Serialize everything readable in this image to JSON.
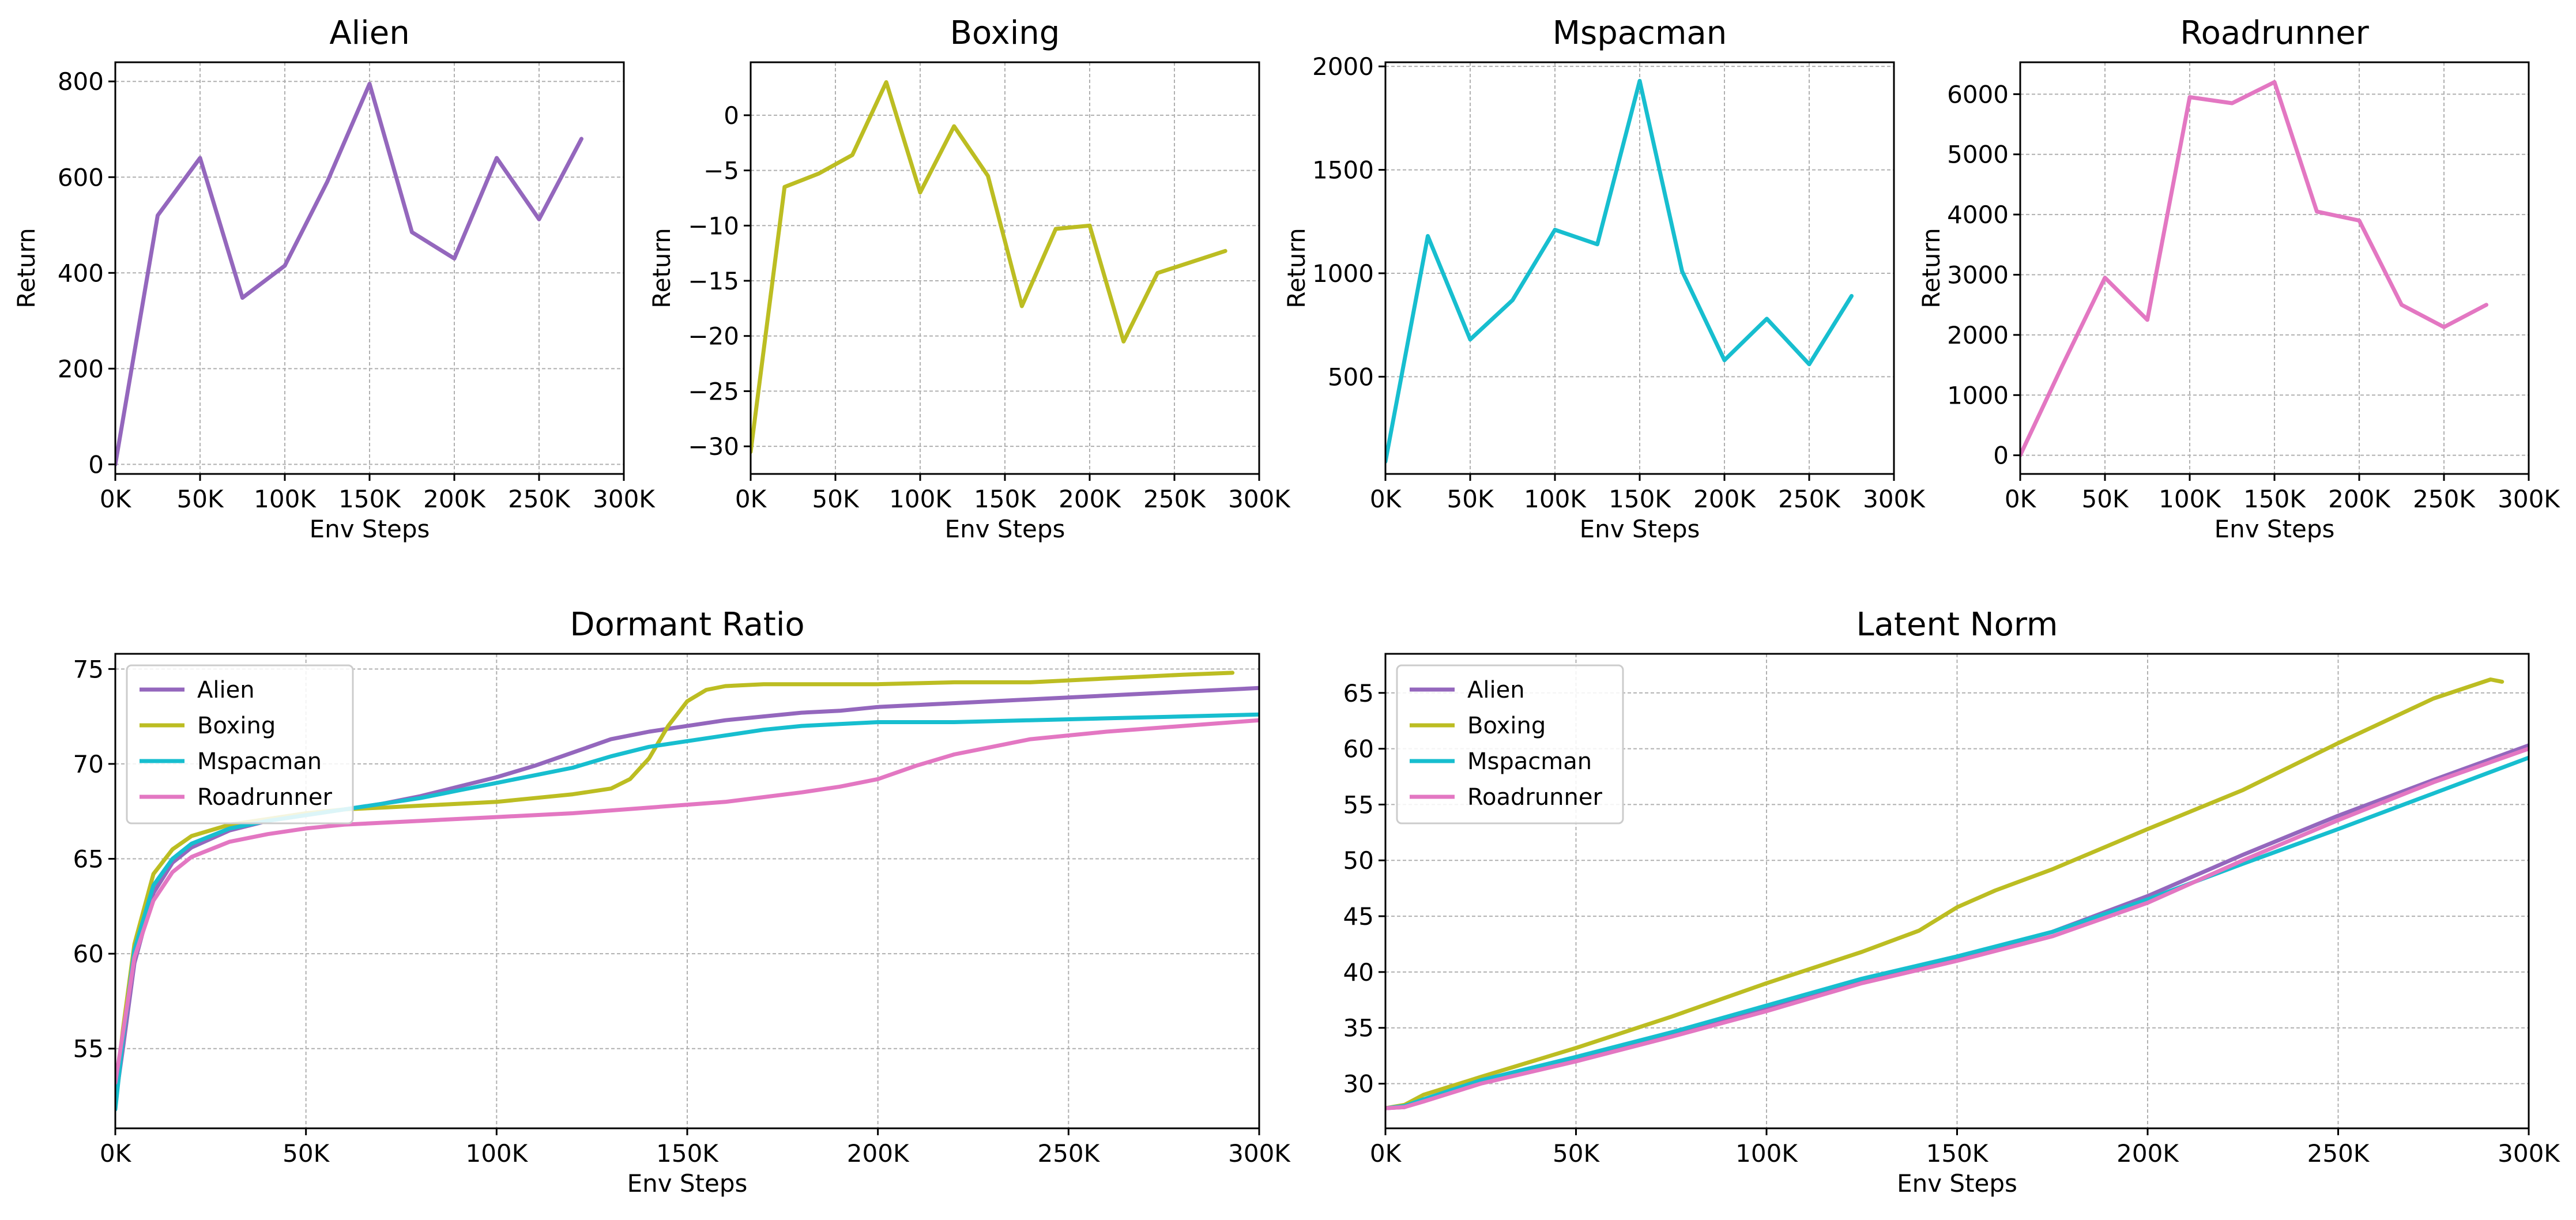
{
  "chart_data": [
    {
      "type": "line",
      "title": "Alien",
      "xlabel": "Env Steps",
      "ylabel": "Return",
      "xlim": [
        0,
        300000
      ],
      "ylim": [
        -20,
        840
      ],
      "xticks": [
        0,
        50000,
        100000,
        150000,
        200000,
        250000,
        300000
      ],
      "xtick_labels": [
        "0K",
        "50K",
        "100K",
        "150K",
        "200K",
        "250K",
        "300K"
      ],
      "yticks": [
        0,
        200,
        400,
        600,
        800
      ],
      "ytick_labels": [
        "0",
        "200",
        "400",
        "600",
        "800"
      ],
      "grid": true,
      "color": "#9467bd",
      "x": [
        0,
        25000,
        50000,
        75000,
        100000,
        125000,
        150000,
        175000,
        200000,
        225000,
        250000,
        275000
      ],
      "y": [
        0,
        520,
        640,
        348,
        415,
        590,
        795,
        485,
        430,
        640,
        512,
        680
      ]
    },
    {
      "type": "line",
      "title": "Boxing",
      "xlabel": "Env Steps",
      "ylabel": "Return",
      "xlim": [
        0,
        300000
      ],
      "ylim": [
        -32.5,
        4.8
      ],
      "xticks": [
        0,
        50000,
        100000,
        150000,
        200000,
        250000,
        300000
      ],
      "xtick_labels": [
        "0K",
        "50K",
        "100K",
        "150K",
        "200K",
        "250K",
        "300K"
      ],
      "yticks": [
        -30,
        -25,
        -20,
        -15,
        -10,
        -5,
        0
      ],
      "ytick_labels": [
        "−30",
        "−25",
        "−20",
        "−15",
        "−10",
        "−5",
        "0"
      ],
      "grid": true,
      "color": "#bcbd22",
      "x": [
        0,
        20000,
        40000,
        60000,
        80000,
        100000,
        120000,
        140000,
        160000,
        180000,
        200000,
        220000,
        240000,
        280000
      ],
      "y": [
        -30.5,
        -6.5,
        -5.3,
        -3.6,
        3.0,
        -7.0,
        -1.0,
        -5.5,
        -17.3,
        -10.3,
        -10.0,
        -20.5,
        -14.3,
        -12.3
      ]
    },
    {
      "type": "line",
      "title": "Mspacman",
      "xlabel": "Env Steps",
      "ylabel": "Return",
      "xlim": [
        0,
        300000
      ],
      "ylim": [
        30,
        2020
      ],
      "xticks": [
        0,
        50000,
        100000,
        150000,
        200000,
        250000,
        300000
      ],
      "xtick_labels": [
        "0K",
        "50K",
        "100K",
        "150K",
        "200K",
        "250K",
        "300K"
      ],
      "yticks": [
        500,
        1000,
        1500,
        2000
      ],
      "ytick_labels": [
        "500",
        "1000",
        "1500",
        "2000"
      ],
      "grid": true,
      "color": "#17becf",
      "x": [
        0,
        25000,
        50000,
        75000,
        100000,
        125000,
        150000,
        175000,
        200000,
        225000,
        250000,
        275000
      ],
      "y": [
        90,
        1180,
        680,
        870,
        1210,
        1140,
        1930,
        1010,
        580,
        780,
        560,
        890
      ]
    },
    {
      "type": "line",
      "title": "Roadrunner",
      "xlabel": "Env Steps",
      "ylabel": "Return",
      "xlim": [
        0,
        300000
      ],
      "ylim": [
        -310,
        6530
      ],
      "xticks": [
        0,
        50000,
        100000,
        150000,
        200000,
        250000,
        300000
      ],
      "xtick_labels": [
        "0K",
        "50K",
        "100K",
        "150K",
        "200K",
        "250K",
        "300K"
      ],
      "yticks": [
        0,
        1000,
        2000,
        3000,
        4000,
        5000,
        6000
      ],
      "ytick_labels": [
        "0",
        "1000",
        "2000",
        "3000",
        "4000",
        "5000",
        "6000"
      ],
      "grid": true,
      "color": "#e377c2",
      "x": [
        0,
        25000,
        50000,
        75000,
        100000,
        125000,
        150000,
        175000,
        200000,
        225000,
        250000,
        275000
      ],
      "y": [
        0,
        1500,
        2950,
        2250,
        5950,
        5850,
        6200,
        4050,
        3900,
        2500,
        2130,
        2500
      ]
    },
    {
      "type": "line",
      "title": "Dormant Ratio",
      "xlabel": "Env Steps",
      "ylabel": "",
      "xlim": [
        0,
        300000
      ],
      "ylim": [
        50.8,
        75.8
      ],
      "xticks": [
        0,
        50000,
        100000,
        150000,
        200000,
        250000,
        300000
      ],
      "xtick_labels": [
        "0K",
        "50K",
        "100K",
        "150K",
        "200K",
        "250K",
        "300K"
      ],
      "yticks": [
        55,
        60,
        65,
        70,
        75
      ],
      "ytick_labels": [
        "55",
        "60",
        "65",
        "70",
        "75"
      ],
      "grid": true,
      "legend": "upper-left",
      "series": [
        {
          "name": "Alien",
          "color": "#9467bd",
          "x": [
            0,
            2000,
            5000,
            10000,
            15000,
            20000,
            30000,
            40000,
            50000,
            60000,
            70000,
            80000,
            90000,
            100000,
            110000,
            120000,
            130000,
            140000,
            150000,
            160000,
            170000,
            180000,
            190000,
            200000,
            220000,
            240000,
            260000,
            280000,
            300000
          ],
          "y": [
            52.2,
            55.0,
            59.5,
            63.2,
            64.8,
            65.6,
            66.5,
            67.0,
            67.3,
            67.6,
            67.9,
            68.3,
            68.8,
            69.3,
            69.9,
            70.6,
            71.3,
            71.7,
            72.0,
            72.3,
            72.5,
            72.7,
            72.8,
            73.0,
            73.2,
            73.4,
            73.6,
            73.8,
            74.0
          ]
        },
        {
          "name": "Boxing",
          "color": "#bcbd22",
          "x": [
            0,
            2000,
            5000,
            10000,
            15000,
            20000,
            30000,
            40000,
            50000,
            60000,
            70000,
            80000,
            90000,
            100000,
            110000,
            120000,
            130000,
            135000,
            140000,
            145000,
            150000,
            155000,
            160000,
            170000,
            180000,
            200000,
            220000,
            240000,
            260000,
            280000,
            293000
          ],
          "y": [
            52.5,
            56.0,
            60.5,
            64.2,
            65.5,
            66.2,
            66.8,
            67.1,
            67.4,
            67.6,
            67.7,
            67.8,
            67.9,
            68.0,
            68.2,
            68.4,
            68.7,
            69.2,
            70.3,
            72.0,
            73.3,
            73.9,
            74.1,
            74.2,
            74.2,
            74.2,
            74.3,
            74.3,
            74.5,
            74.7,
            74.8
          ]
        },
        {
          "name": "Mspacman",
          "color": "#17becf",
          "x": [
            0,
            2000,
            5000,
            10000,
            15000,
            20000,
            30000,
            40000,
            50000,
            60000,
            70000,
            80000,
            90000,
            100000,
            110000,
            120000,
            130000,
            140000,
            150000,
            160000,
            170000,
            180000,
            190000,
            200000,
            220000,
            240000,
            260000,
            280000,
            300000
          ],
          "y": [
            51.8,
            55.5,
            60.2,
            63.6,
            65.0,
            65.8,
            66.6,
            67.0,
            67.3,
            67.6,
            67.9,
            68.2,
            68.6,
            69.0,
            69.4,
            69.8,
            70.4,
            70.9,
            71.2,
            71.5,
            71.8,
            72.0,
            72.1,
            72.2,
            72.2,
            72.3,
            72.4,
            72.5,
            72.6
          ]
        },
        {
          "name": "Roadrunner",
          "color": "#e377c2",
          "x": [
            0,
            2000,
            5000,
            10000,
            15000,
            20000,
            30000,
            40000,
            50000,
            60000,
            80000,
            100000,
            120000,
            140000,
            160000,
            180000,
            190000,
            200000,
            210000,
            220000,
            230000,
            240000,
            260000,
            280000,
            300000
          ],
          "y": [
            53.2,
            55.8,
            59.8,
            62.8,
            64.3,
            65.1,
            65.9,
            66.3,
            66.6,
            66.8,
            67.0,
            67.2,
            67.4,
            67.7,
            68.0,
            68.5,
            68.8,
            69.2,
            69.9,
            70.5,
            70.9,
            71.3,
            71.7,
            72.0,
            72.3
          ]
        }
      ]
    },
    {
      "type": "line",
      "title": "Latent Norm",
      "xlabel": "Env Steps",
      "ylabel": "",
      "xlim": [
        0,
        300000
      ],
      "ylim": [
        26.0,
        68.5
      ],
      "xticks": [
        0,
        50000,
        100000,
        150000,
        200000,
        250000,
        300000
      ],
      "xtick_labels": [
        "0K",
        "50K",
        "100K",
        "150K",
        "200K",
        "250K",
        "300K"
      ],
      "yticks": [
        30,
        35,
        40,
        45,
        50,
        55,
        60,
        65
      ],
      "ytick_labels": [
        "30",
        "35",
        "40",
        "45",
        "50",
        "55",
        "60",
        "65"
      ],
      "grid": true,
      "legend": "upper-left",
      "series": [
        {
          "name": "Alien",
          "color": "#9467bd",
          "x": [
            0,
            5000,
            10000,
            25000,
            50000,
            75000,
            100000,
            125000,
            150000,
            175000,
            200000,
            225000,
            250000,
            275000,
            300000
          ],
          "y": [
            27.8,
            27.9,
            28.5,
            30.2,
            32.2,
            34.4,
            36.8,
            39.3,
            41.3,
            43.6,
            46.8,
            50.5,
            54.0,
            57.2,
            60.3
          ]
        },
        {
          "name": "Boxing",
          "color": "#bcbd22",
          "x": [
            0,
            5000,
            10000,
            25000,
            50000,
            75000,
            100000,
            125000,
            140000,
            150000,
            160000,
            175000,
            200000,
            225000,
            250000,
            275000,
            290000,
            293000
          ],
          "y": [
            27.8,
            28.1,
            29.0,
            30.6,
            33.2,
            36.0,
            39.0,
            41.8,
            43.7,
            45.8,
            47.3,
            49.2,
            52.8,
            56.3,
            60.5,
            64.5,
            66.2,
            66.0
          ]
        },
        {
          "name": "Mspacman",
          "color": "#17becf",
          "x": [
            0,
            5000,
            10000,
            25000,
            50000,
            75000,
            100000,
            125000,
            150000,
            175000,
            200000,
            225000,
            250000,
            275000,
            300000
          ],
          "y": [
            27.8,
            28.0,
            28.6,
            30.3,
            32.4,
            34.6,
            37.0,
            39.4,
            41.4,
            43.6,
            46.5,
            49.7,
            52.8,
            56.0,
            59.2
          ]
        },
        {
          "name": "Roadrunner",
          "color": "#e377c2",
          "x": [
            0,
            5000,
            10000,
            25000,
            50000,
            75000,
            100000,
            125000,
            150000,
            175000,
            200000,
            225000,
            250000,
            275000,
            300000
          ],
          "y": [
            27.8,
            27.9,
            28.4,
            30.0,
            32.0,
            34.2,
            36.5,
            39.0,
            41.0,
            43.2,
            46.2,
            50.0,
            53.6,
            57.0,
            60.0
          ]
        }
      ]
    }
  ]
}
